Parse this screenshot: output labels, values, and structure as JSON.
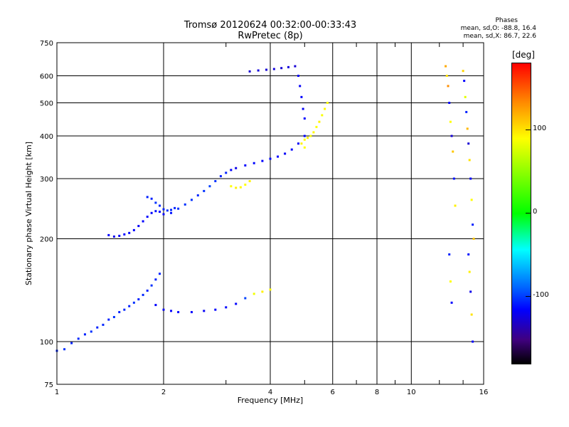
{
  "header": {
    "title_line1": "Tromsø 20120624 00:32:00-00:33:43",
    "title_line2": "RwPretec (8p)"
  },
  "stats": {
    "heading": "Phases",
    "line_o": "mean, sd,O: -88.8, 16.4",
    "line_x": "mean, sd,X: 86.7, 22.6"
  },
  "colorbar": {
    "title": "[deg]",
    "range": [
      -180,
      180
    ],
    "ticks": [
      {
        "value": 100,
        "label": "100"
      },
      {
        "value": 0,
        "label": "0"
      },
      {
        "value": -100,
        "label": "-100"
      }
    ]
  },
  "chart_data": {
    "type": "scatter",
    "title": "Tromsø 20120624 00:32:00-00:33:43",
    "subtitle": "RwPretec (8p)",
    "xlabel": "Frequency [MHz]",
    "ylabel": "Stationary phase Virtual Height [km]",
    "x_scale": "log",
    "y_scale": "log",
    "xlim": [
      1,
      16
    ],
    "ylim": [
      75,
      750
    ],
    "x_ticks": [
      1,
      2,
      4,
      6,
      8,
      10,
      16
    ],
    "x_tick_labels": [
      "1",
      "2",
      "4",
      "6",
      "8",
      "10",
      "16"
    ],
    "x_minor_ticks": [
      3,
      5,
      7,
      9,
      12,
      14
    ],
    "y_ticks": [
      75,
      100,
      200,
      300,
      400,
      500,
      600,
      750
    ],
    "y_tick_labels": [
      "75",
      "100",
      "200",
      "300",
      "400",
      "500",
      "600",
      "750"
    ],
    "grid": true,
    "color_variable": "phase [deg]",
    "color_range": [
      -180,
      180
    ],
    "series": [
      {
        "values": [
          [
            1.0,
            94,
            -100
          ],
          [
            1.05,
            95,
            -95
          ],
          [
            1.1,
            99,
            -100
          ],
          [
            1.15,
            102,
            -98
          ],
          [
            1.2,
            105,
            -100
          ],
          [
            1.25,
            107,
            -95
          ],
          [
            1.3,
            110,
            -100
          ],
          [
            1.35,
            112,
            -98
          ],
          [
            1.4,
            116,
            -100
          ],
          [
            1.45,
            118,
            -95
          ],
          [
            1.5,
            122,
            -100
          ],
          [
            1.55,
            124,
            -98
          ],
          [
            1.6,
            127,
            -100
          ],
          [
            1.65,
            130,
            -95
          ],
          [
            1.7,
            133,
            -100
          ],
          [
            1.75,
            137,
            -98
          ],
          [
            1.8,
            141,
            -100
          ],
          [
            1.85,
            146,
            -95
          ],
          [
            1.9,
            152,
            -100
          ],
          [
            1.95,
            158,
            -98
          ]
        ]
      },
      {
        "values": [
          [
            1.4,
            205,
            -110
          ],
          [
            1.45,
            203,
            -115
          ],
          [
            1.5,
            204,
            -112
          ],
          [
            1.55,
            206,
            -110
          ],
          [
            1.6,
            208,
            -108
          ],
          [
            1.65,
            212,
            -110
          ],
          [
            1.7,
            218,
            -112
          ],
          [
            1.75,
            225,
            -110
          ],
          [
            1.8,
            232,
            -108
          ],
          [
            1.85,
            238,
            -110
          ],
          [
            1.9,
            241,
            -105
          ],
          [
            1.95,
            240,
            -108
          ],
          [
            2.0,
            236,
            -110
          ],
          [
            2.1,
            238,
            -105
          ],
          [
            2.2,
            245,
            -95
          ],
          [
            2.3,
            252,
            -95
          ],
          [
            2.4,
            260,
            -95
          ],
          [
            2.5,
            268,
            -98
          ],
          [
            2.6,
            276,
            -95
          ],
          [
            2.7,
            285,
            -90
          ],
          [
            2.8,
            295,
            -95
          ],
          [
            2.9,
            305,
            -100
          ],
          [
            3.0,
            312,
            -100
          ],
          [
            3.1,
            318,
            -110
          ],
          [
            3.2,
            322,
            -115
          ],
          [
            3.4,
            328,
            -110
          ],
          [
            3.6,
            333,
            -108
          ],
          [
            3.8,
            338,
            -110
          ],
          [
            4.0,
            343,
            -108
          ],
          [
            4.2,
            348,
            -110
          ],
          [
            4.4,
            355,
            -112
          ],
          [
            4.6,
            365,
            -110
          ],
          [
            4.8,
            380,
            -112
          ],
          [
            5.0,
            400,
            -110
          ]
        ]
      },
      {
        "values": [
          [
            1.8,
            265,
            -100
          ],
          [
            1.85,
            262,
            -100
          ],
          [
            1.9,
            255,
            -95
          ],
          [
            1.95,
            250,
            -98
          ],
          [
            2.0,
            244,
            -100
          ],
          [
            2.05,
            242,
            -95
          ],
          [
            2.1,
            243,
            -98
          ],
          [
            2.15,
            246,
            -100
          ]
        ]
      },
      {
        "values": [
          [
            1.9,
            128,
            -110
          ],
          [
            2.0,
            124,
            -112
          ],
          [
            2.1,
            123,
            -110
          ],
          [
            2.2,
            122,
            -108
          ],
          [
            2.4,
            122,
            -110
          ],
          [
            2.6,
            123,
            -112
          ],
          [
            2.8,
            124,
            -110
          ],
          [
            3.0,
            126,
            -108
          ],
          [
            3.2,
            129,
            -110
          ],
          [
            3.4,
            134,
            -90
          ],
          [
            3.6,
            138,
            85
          ],
          [
            3.8,
            140,
            95
          ],
          [
            4.0,
            142,
            90
          ]
        ]
      },
      {
        "values": [
          [
            3.5,
            618,
            -120
          ],
          [
            3.7,
            622,
            -118
          ],
          [
            3.9,
            625,
            -120
          ],
          [
            4.1,
            628,
            -118
          ],
          [
            4.3,
            632,
            -120
          ],
          [
            4.5,
            636,
            -118
          ],
          [
            4.7,
            640,
            -120
          ],
          [
            4.8,
            600,
            -110
          ],
          [
            4.85,
            560,
            -112
          ],
          [
            4.9,
            520,
            -110
          ],
          [
            4.95,
            480,
            -112
          ],
          [
            5.0,
            450,
            -110
          ]
        ]
      },
      {
        "values": [
          [
            5.0,
            390,
            90
          ],
          [
            5.1,
            395,
            95
          ],
          [
            5.2,
            400,
            88
          ],
          [
            5.3,
            410,
            92
          ],
          [
            5.4,
            425,
            90
          ],
          [
            5.5,
            440,
            95
          ],
          [
            5.6,
            460,
            88
          ],
          [
            5.7,
            480,
            92
          ],
          [
            5.8,
            500,
            90
          ],
          [
            4.9,
            380,
            95
          ],
          [
            5.0,
            370,
            90
          ]
        ]
      },
      {
        "values": [
          [
            3.1,
            285,
            90
          ],
          [
            3.2,
            282,
            95
          ],
          [
            3.3,
            283,
            92
          ],
          [
            3.4,
            288,
            90
          ],
          [
            3.5,
            295,
            95
          ]
        ]
      },
      {
        "values": [
          [
            12.5,
            640,
            120
          ],
          [
            12.6,
            600,
            100
          ],
          [
            12.7,
            560,
            130
          ],
          [
            12.8,
            500,
            -110
          ],
          [
            12.9,
            440,
            90
          ],
          [
            13.0,
            400,
            -120
          ],
          [
            13.1,
            360,
            110
          ],
          [
            13.2,
            300,
            -105
          ],
          [
            13.3,
            250,
            95
          ],
          [
            14.0,
            620,
            105
          ],
          [
            14.1,
            580,
            -110
          ],
          [
            14.2,
            520,
            80
          ],
          [
            14.3,
            470,
            -100
          ],
          [
            14.4,
            420,
            115
          ],
          [
            14.5,
            380,
            -120
          ],
          [
            14.6,
            340,
            100
          ],
          [
            14.7,
            300,
            -110
          ],
          [
            14.8,
            260,
            90
          ],
          [
            14.9,
            220,
            -100
          ],
          [
            15.0,
            200,
            110
          ],
          [
            14.5,
            180,
            -105
          ],
          [
            14.6,
            160,
            95
          ],
          [
            14.7,
            140,
            -115
          ],
          [
            14.8,
            120,
            100
          ],
          [
            14.9,
            100,
            -110
          ],
          [
            12.8,
            180,
            -100
          ],
          [
            12.9,
            150,
            90
          ],
          [
            13.0,
            130,
            -110
          ]
        ]
      }
    ]
  }
}
